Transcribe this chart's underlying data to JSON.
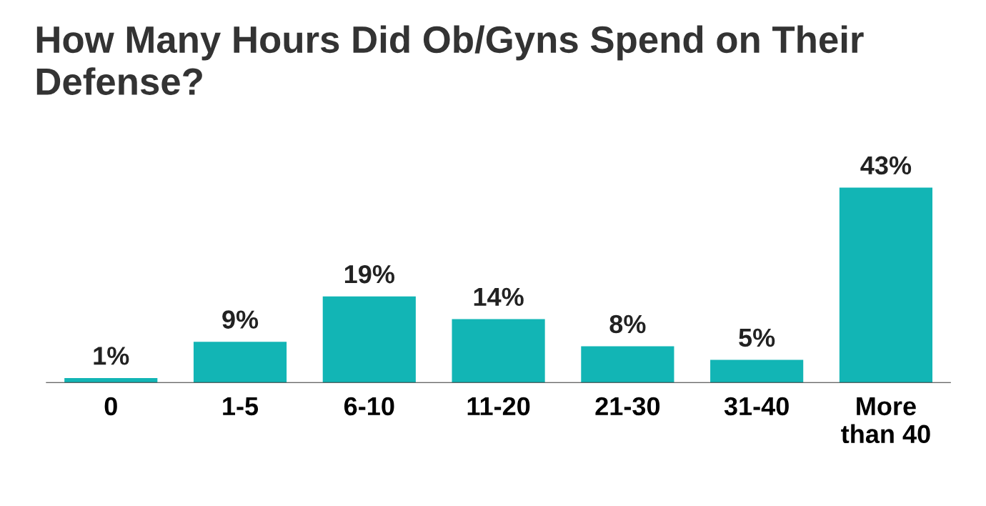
{
  "chart_data": {
    "type": "bar",
    "title": "How Many Hours Did Ob/Gyns Spend on Their Defense?",
    "categories": [
      "0",
      "1-5",
      "6-10",
      "11-20",
      "21-30",
      "31-40",
      "More\nthan 40"
    ],
    "values": [
      1,
      9,
      19,
      14,
      8,
      5,
      43
    ],
    "color": "#12b5b5",
    "value_labels": [
      "1%",
      "9%",
      "19%",
      "14%",
      "8%",
      "5%",
      "43%"
    ],
    "grid": false,
    "legend": false
  }
}
